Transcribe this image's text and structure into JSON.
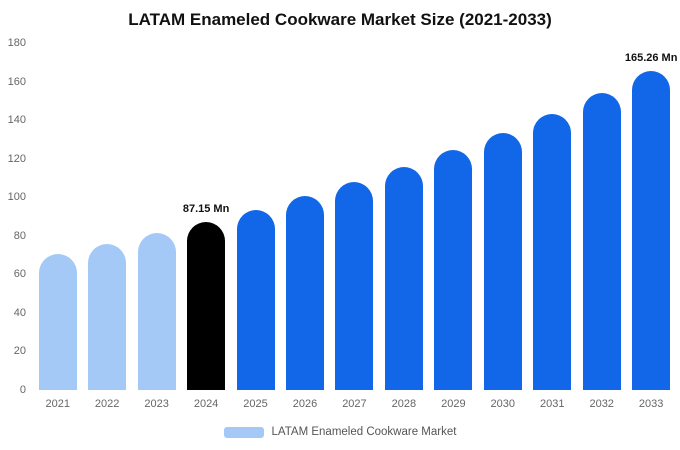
{
  "title": "LATAM Enameled Cookware Market Size (2021-2033)",
  "legend": {
    "label": "LATAM Enameled Cookware Market",
    "swatch_color": "#a4c9f6"
  },
  "chart_data": {
    "type": "bar",
    "title": "LATAM Enameled Cookware Market Size (2021-2033)",
    "categories": [
      "2021",
      "2022",
      "2023",
      "2024",
      "2025",
      "2026",
      "2027",
      "2028",
      "2029",
      "2030",
      "2031",
      "2032",
      "2033"
    ],
    "values": [
      70.4,
      75.6,
      81.2,
      87.15,
      93.6,
      100.5,
      107.9,
      115.8,
      124.4,
      133.5,
      143.4,
      153.9,
      165.26
    ],
    "colors": [
      "#a4c9f6",
      "#a4c9f6",
      "#a4c9f6",
      "#000000",
      "#1267e8",
      "#1267e8",
      "#1267e8",
      "#1267e8",
      "#1267e8",
      "#1267e8",
      "#1267e8",
      "#1267e8",
      "#1267e8"
    ],
    "ylim": [
      0,
      180
    ],
    "yticks": [
      0,
      20,
      40,
      60,
      80,
      100,
      120,
      140,
      160,
      180
    ],
    "grid": false,
    "legend_position": "bottom",
    "annotations": [
      {
        "category": "2024",
        "text": "87.15 Mn"
      },
      {
        "category": "2033",
        "text": "165.26 Mn"
      }
    ],
    "series_colors_meaning": {
      "historical": "#a4c9f6",
      "base_year": "#000000",
      "forecast": "#1267e8"
    }
  }
}
